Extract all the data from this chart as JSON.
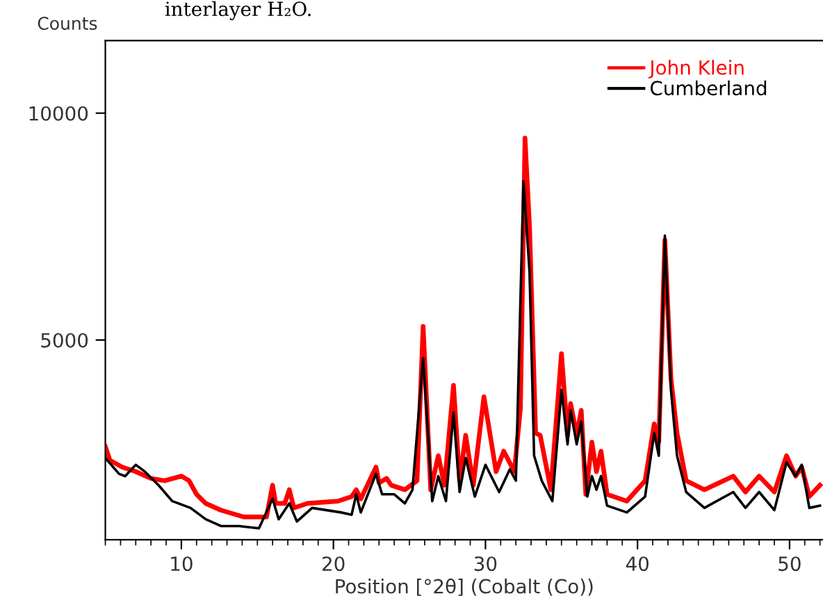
{
  "chart_data": {
    "type": "line",
    "xlabel": "Position [°2θ] (Cobalt (Co))",
    "ylabel": "Counts",
    "annotations": [
      "interlayer H₂O."
    ],
    "xlim": [
      5,
      52.2
    ],
    "ylim": [
      600,
      11600
    ],
    "xticks": [
      10,
      20,
      30,
      40,
      50
    ],
    "yticks": [
      5000,
      10000
    ],
    "grid": false,
    "legend": "top right",
    "marker": "none",
    "line_style": "solid",
    "series": [
      {
        "name": "John Klein",
        "color": "#ff0000",
        "x": [
          5.0,
          5.3,
          6.1,
          7.0,
          8.0,
          8.9,
          10.0,
          10.5,
          11.0,
          11.6,
          12.6,
          14.1,
          15.6,
          16.0,
          16.2,
          16.8,
          17.1,
          17.4,
          18.3,
          20.3,
          21.2,
          21.5,
          21.8,
          22.8,
          23.0,
          23.5,
          23.8,
          24.7,
          25.5,
          25.9,
          26.4,
          26.9,
          27.3,
          27.9,
          28.3,
          28.7,
          29.2,
          29.9,
          30.7,
          31.2,
          31.9,
          32.3,
          32.6,
          32.9,
          33.3,
          33.6,
          34.3,
          35.0,
          35.4,
          35.6,
          36.0,
          36.3,
          36.6,
          37.0,
          37.3,
          37.6,
          38.0,
          39.3,
          40.5,
          41.1,
          41.4,
          41.8,
          42.2,
          42.6,
          43.2,
          44.4,
          46.3,
          47.1,
          48.0,
          49.0,
          49.8,
          50.4,
          50.8,
          51.3,
          52.0
        ],
        "values": [
          2650,
          2350,
          2200,
          2100,
          1950,
          1900,
          2000,
          1900,
          1600,
          1400,
          1250,
          1100,
          1100,
          1800,
          1400,
          1400,
          1700,
          1300,
          1400,
          1450,
          1550,
          1700,
          1500,
          2200,
          1850,
          1950,
          1800,
          1700,
          1900,
          5300,
          1700,
          2450,
          1800,
          4000,
          1900,
          2900,
          1800,
          3750,
          2100,
          2550,
          2100,
          3500,
          9450,
          7500,
          2950,
          2900,
          1700,
          4700,
          2900,
          3600,
          2900,
          3450,
          1600,
          2750,
          2100,
          2550,
          1600,
          1450,
          1900,
          3150,
          2750,
          7200,
          4150,
          2950,
          1900,
          1700,
          2000,
          1650,
          2000,
          1650,
          2450,
          2000,
          2200,
          1550,
          1800
        ]
      },
      {
        "name": "Cumberland",
        "color": "#000000",
        "x": [
          5.0,
          5.9,
          6.3,
          7.0,
          7.6,
          8.5,
          9.4,
          10.6,
          11.6,
          12.6,
          13.8,
          15.1,
          16.0,
          16.4,
          17.1,
          17.6,
          18.6,
          20.5,
          21.2,
          21.5,
          21.8,
          22.8,
          23.2,
          24.0,
          24.7,
          25.2,
          25.9,
          26.5,
          26.9,
          27.4,
          27.9,
          28.3,
          28.7,
          29.3,
          30.0,
          30.9,
          31.6,
          32.0,
          32.5,
          32.9,
          33.2,
          33.7,
          34.4,
          35.0,
          35.4,
          35.6,
          36.0,
          36.3,
          36.7,
          37.0,
          37.3,
          37.6,
          38.0,
          39.3,
          40.5,
          41.1,
          41.4,
          41.8,
          42.2,
          42.6,
          43.2,
          44.4,
          46.3,
          47.1,
          48.0,
          49.0,
          49.8,
          50.4,
          50.8,
          51.3,
          52.0
        ],
        "values": [
          2400,
          2050,
          2000,
          2250,
          2100,
          1800,
          1450,
          1300,
          1050,
          900,
          900,
          850,
          1500,
          1050,
          1400,
          1000,
          1300,
          1200,
          1150,
          1600,
          1200,
          2050,
          1600,
          1600,
          1400,
          1700,
          4600,
          1450,
          2000,
          1450,
          3400,
          1650,
          2400,
          1550,
          2250,
          1650,
          2150,
          1900,
          8500,
          6500,
          2450,
          1900,
          1450,
          3900,
          2700,
          3450,
          2700,
          3200,
          1550,
          2000,
          1700,
          2000,
          1350,
          1200,
          1550,
          2950,
          2450,
          7300,
          3900,
          2450,
          1650,
          1300,
          1650,
          1300,
          1650,
          1250,
          2300,
          2000,
          2250,
          1300,
          1350
        ]
      }
    ]
  }
}
